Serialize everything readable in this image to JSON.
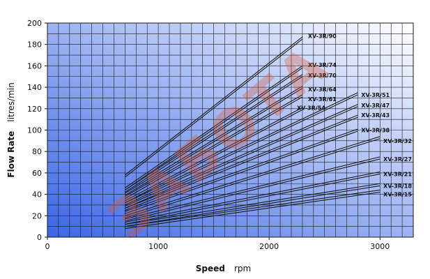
{
  "chart_data": {
    "type": "line",
    "xlabel": "Speed",
    "xunit": "rpm",
    "ylabel": "Flow Rate",
    "yunit": "litres/min",
    "xlim": [
      0,
      3300
    ],
    "ylim": [
      0,
      200
    ],
    "xticks": [
      0,
      1000,
      2000,
      3000
    ],
    "yticks": [
      0,
      20,
      40,
      60,
      80,
      100,
      120,
      140,
      160,
      180,
      200
    ],
    "grid": true,
    "background": {
      "gradient_from": "#3a66e6",
      "gradient_to": "#ffffff"
    },
    "line_color": "#1a1a1a",
    "watermark": "ЗАБОТА",
    "watermark_color": "#d9552e",
    "series": [
      {
        "name": "XV-3R/90",
        "x": [
          700,
          2300
        ],
        "y": [
          58,
          187
        ]
      },
      {
        "name": "XV-3R/90",
        "x": [
          700,
          2300
        ],
        "y": [
          56,
          185
        ]
      },
      {
        "name": "XV-3R/74",
        "x": [
          700,
          2300
        ],
        "y": [
          46,
          160
        ]
      },
      {
        "name": "XV-3R/74",
        "x": [
          700,
          2300
        ],
        "y": [
          44,
          158
        ]
      },
      {
        "name": "XV-3R/70",
        "x": [
          700,
          2300
        ],
        "y": [
          44,
          152
        ]
      },
      {
        "name": "XV-3R/70",
        "x": [
          700,
          2300
        ],
        "y": [
          42,
          150
        ]
      },
      {
        "name": "XV-3R/64",
        "x": [
          700,
          2300
        ],
        "y": [
          41,
          141
        ]
      },
      {
        "name": "XV-3R/64",
        "x": [
          700,
          2300
        ],
        "y": [
          39,
          139
        ]
      },
      {
        "name": "XV-3R/61",
        "x": [
          700,
          2300
        ],
        "y": [
          38,
          133
        ]
      },
      {
        "name": "XV-3R/61",
        "x": [
          700,
          2300
        ],
        "y": [
          36,
          131
        ]
      },
      {
        "name": "XV-3R/54",
        "x": [
          700,
          2300
        ],
        "y": [
          34,
          121
        ]
      },
      {
        "name": "XV-3R/54",
        "x": [
          700,
          2300
        ],
        "y": [
          32,
          119
        ]
      },
      {
        "name": "XV-3R/51",
        "x": [
          700,
          2800
        ],
        "y": [
          32,
          135
        ]
      },
      {
        "name": "XV-3R/51",
        "x": [
          700,
          2800
        ],
        "y": [
          30,
          133
        ]
      },
      {
        "name": "XV-3R/47",
        "x": [
          700,
          2800
        ],
        "y": [
          29,
          124
        ]
      },
      {
        "name": "XV-3R/47",
        "x": [
          700,
          2800
        ],
        "y": [
          27,
          122
        ]
      },
      {
        "name": "XV-3R/43",
        "x": [
          700,
          2800
        ],
        "y": [
          27,
          114
        ]
      },
      {
        "name": "XV-3R/43",
        "x": [
          700,
          2800
        ],
        "y": [
          25,
          112
        ]
      },
      {
        "name": "XV-3R/38",
        "x": [
          700,
          2800
        ],
        "y": [
          24,
          101
        ]
      },
      {
        "name": "XV-3R/38",
        "x": [
          700,
          2800
        ],
        "y": [
          22,
          99
        ]
      },
      {
        "name": "XV-3R/32",
        "x": [
          700,
          3000
        ],
        "y": [
          20,
          94
        ]
      },
      {
        "name": "XV-3R/32",
        "x": [
          700,
          3000
        ],
        "y": [
          18,
          92
        ]
      },
      {
        "name": "XV-3R/27",
        "x": [
          700,
          3000
        ],
        "y": [
          17,
          75
        ]
      },
      {
        "name": "XV-3R/27",
        "x": [
          700,
          3000
        ],
        "y": [
          15,
          73
        ]
      },
      {
        "name": "XV-3R/21",
        "x": [
          700,
          3000
        ],
        "y": [
          14,
          61
        ]
      },
      {
        "name": "XV-3R/21",
        "x": [
          700,
          3000
        ],
        "y": [
          12,
          59
        ]
      },
      {
        "name": "XV-3R/18",
        "x": [
          700,
          3000
        ],
        "y": [
          12,
          50
        ]
      },
      {
        "name": "XV-3R/18",
        "x": [
          700,
          3000
        ],
        "y": [
          10,
          48
        ]
      },
      {
        "name": "XV-3R/15",
        "x": [
          700,
          3000
        ],
        "y": [
          10,
          44
        ]
      },
      {
        "name": "XV-3R/15",
        "x": [
          700,
          3000
        ],
        "y": [
          8,
          42
        ]
      }
    ],
    "labels": [
      {
        "text": "XV-3R/90",
        "x": 2350,
        "y": 188
      },
      {
        "text": "XV-3R/74",
        "x": 2350,
        "y": 161
      },
      {
        "text": "XV-3R/70",
        "x": 2350,
        "y": 151
      },
      {
        "text": "XV-3R/64",
        "x": 2350,
        "y": 138
      },
      {
        "text": "XV-3R/61",
        "x": 2350,
        "y": 129
      },
      {
        "text": "XV-3R/54",
        "x": 2250,
        "y": 121
      },
      {
        "text": "XV-3R/51",
        "x": 2830,
        "y": 133
      },
      {
        "text": "XV-3R/47",
        "x": 2830,
        "y": 123
      },
      {
        "text": "XV-3R/43",
        "x": 2830,
        "y": 114
      },
      {
        "text": "XV-3R/38",
        "x": 2830,
        "y": 100
      },
      {
        "text": "XV-3R/32",
        "x": 3030,
        "y": 90
      },
      {
        "text": "XV-3R/27",
        "x": 3030,
        "y": 73
      },
      {
        "text": "XV-3R/21",
        "x": 3030,
        "y": 59
      },
      {
        "text": "XV-3R/18",
        "x": 3030,
        "y": 48
      },
      {
        "text": "XV-3R/15",
        "x": 3030,
        "y": 40
      }
    ]
  }
}
